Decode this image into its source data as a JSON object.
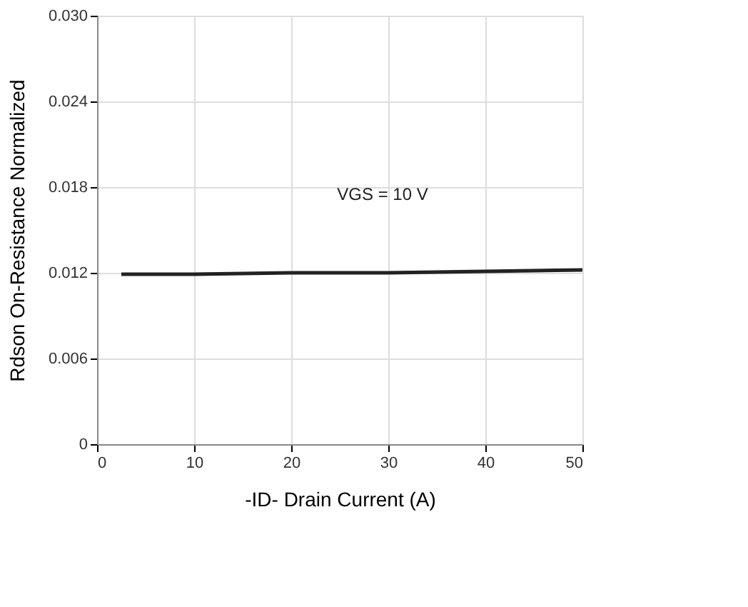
{
  "chart_data": {
    "type": "line",
    "xlabel": "-ID- Drain Current (A)",
    "ylabel": "Rdson On-Resistance Normalized",
    "series": [
      {
        "color": "#222222",
        "x": [
          2.5,
          10,
          20,
          30,
          40,
          50
        ],
        "values": [
          0.0119,
          0.0119,
          0.012,
          0.012,
          0.0121,
          0.0122
        ]
      }
    ],
    "annotations": [
      "VGS = 10 V"
    ],
    "xlim": [
      0,
      50
    ],
    "xticks": [
      0,
      10,
      20,
      30,
      40,
      50
    ],
    "ylim": [
      0,
      0.03
    ],
    "yticks": [
      0,
      {
        "value": 0.006,
        "label": "0.006"
      },
      {
        "value": 0.012,
        "label": "0.012"
      },
      {
        "value": 0.018,
        "label": "0.018"
      },
      {
        "value": 0.024,
        "label": "0.024"
      },
      {
        "value": 0.03,
        "label": "0.030"
      }
    ],
    "grid": true,
    "marker": "none",
    "line_style": "solid"
  }
}
